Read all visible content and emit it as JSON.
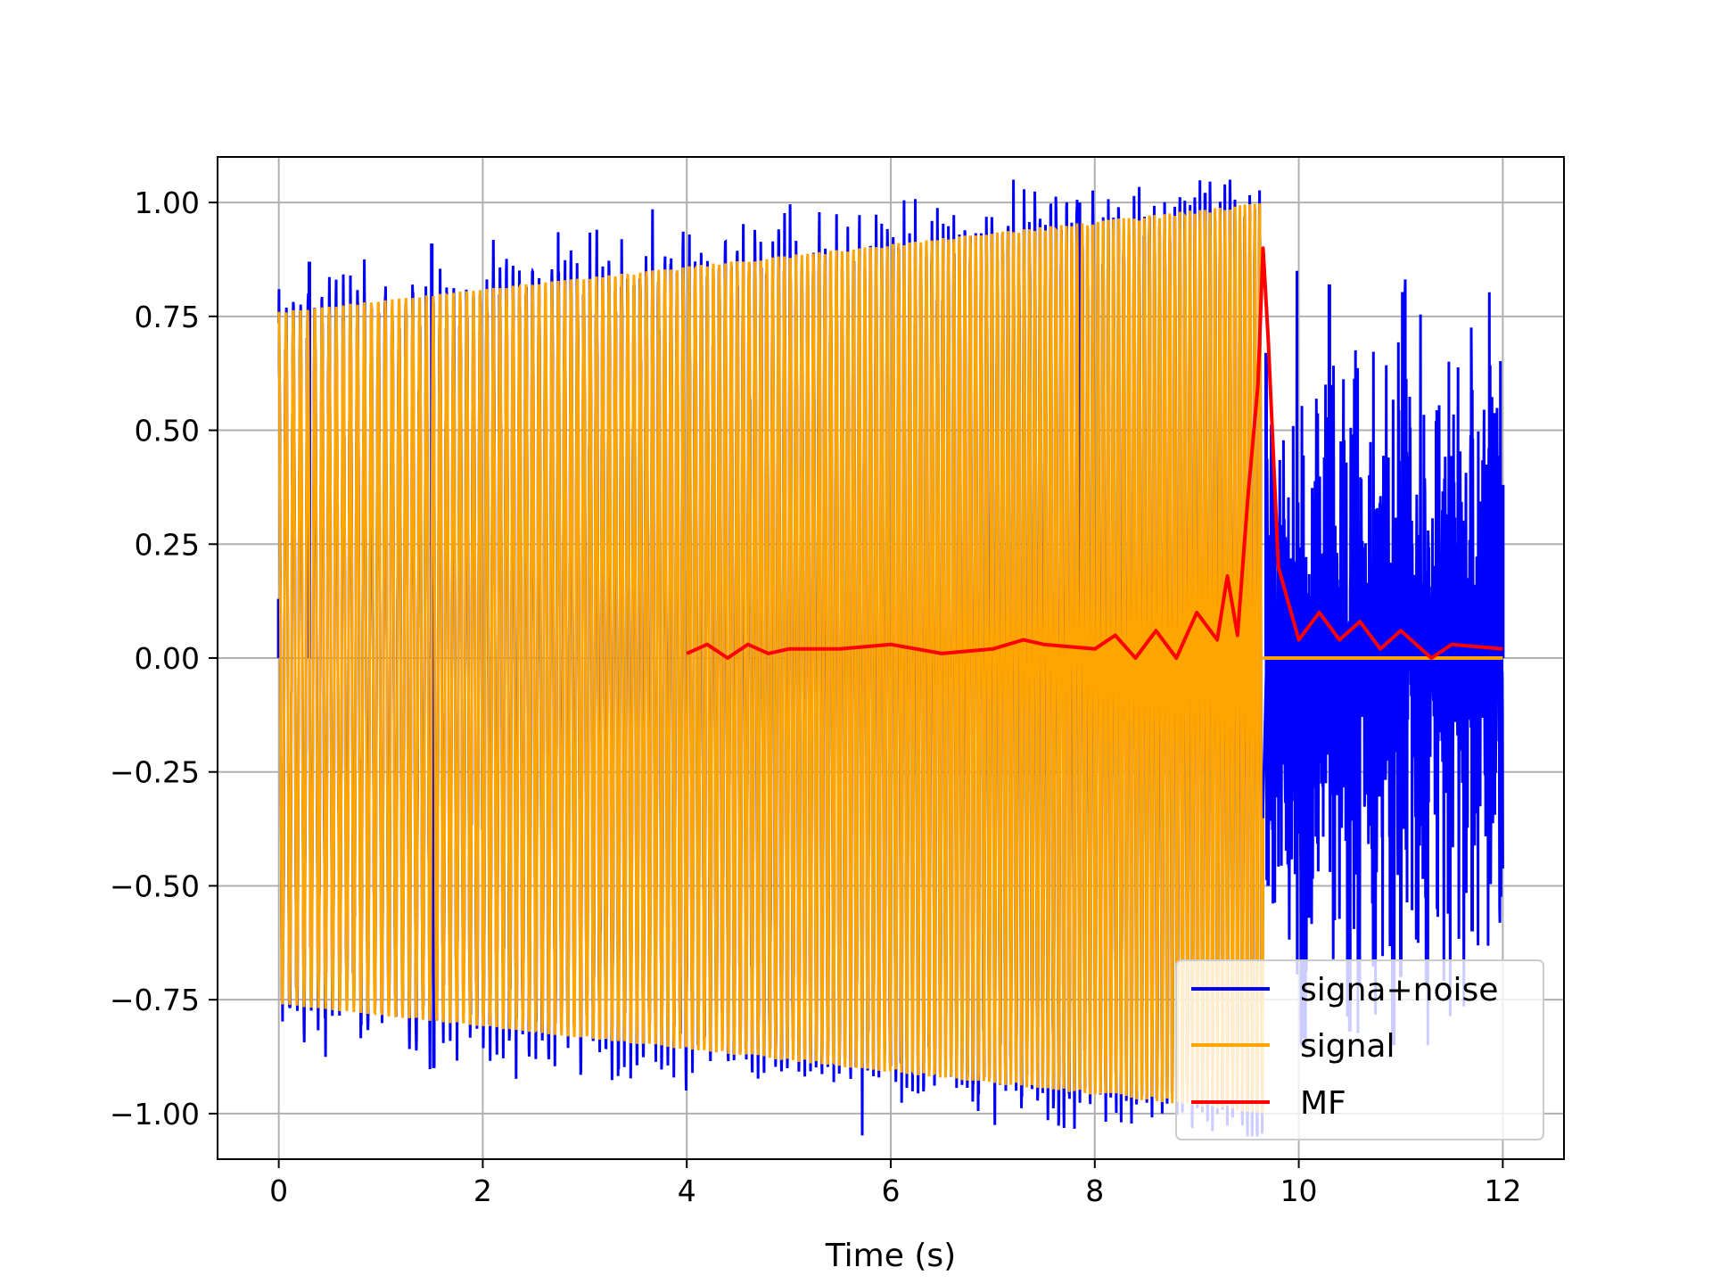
{
  "chart_data": {
    "type": "line",
    "title": "",
    "xlabel": "Time (s)",
    "ylabel": "",
    "xlim": [
      -0.6,
      12.6
    ],
    "ylim": [
      -1.1,
      1.1
    ],
    "grid": true,
    "legend_position": "bottom-right",
    "x_ticks": [
      0,
      2,
      4,
      6,
      8,
      10,
      12
    ],
    "x_tick_labels": [
      "0",
      "2",
      "4",
      "6",
      "8",
      "10",
      "12"
    ],
    "y_ticks": [
      1.0,
      0.75,
      0.5,
      0.25,
      0.0,
      -0.25,
      -0.5,
      -0.75,
      -1.0
    ],
    "y_tick_labels": [
      "1.00",
      "0.75",
      "0.50",
      "0.25",
      "0.00",
      "−0.25",
      "−0.50",
      "−0.75",
      "−1.00"
    ],
    "series": [
      {
        "name": "signa+noise",
        "color": "#0000ff",
        "description_points": {
          "x": [
            0.0,
            0.3,
            1.5,
            1.52,
            7.85,
            9.68,
            9.7,
            10.3,
            10.5,
            11.0,
            11.35,
            11.7,
            12.0
          ],
          "y": [
            0.13,
            0.87,
            0.91,
            -0.9,
            1.0,
            0.67,
            -0.5,
            0.82,
            -0.82,
            -0.7,
            0.52,
            -0.6,
            0.38
          ]
        },
        "segment_after_signal": {
          "x": [
            9.68,
            12.0
          ],
          "y_min": -0.85,
          "y_max": 0.85
        }
      },
      {
        "name": "signal",
        "color": "#ffa500",
        "envelope": {
          "x": [
            0.0,
            9.65
          ],
          "amplitude": [
            0.76,
            1.0
          ]
        },
        "after": {
          "x": [
            9.65,
            12.0
          ],
          "value": 0.0
        }
      },
      {
        "name": "MF",
        "color": "#ff0000",
        "x": [
          4.0,
          4.2,
          4.4,
          4.6,
          4.8,
          5.0,
          5.5,
          6.0,
          6.5,
          7.0,
          7.3,
          7.5,
          8.0,
          8.2,
          8.4,
          8.6,
          8.8,
          9.0,
          9.2,
          9.3,
          9.4,
          9.5,
          9.6,
          9.65,
          9.7,
          9.8,
          9.9,
          10.0,
          10.2,
          10.4,
          10.6,
          10.8,
          11.0,
          11.3,
          11.5,
          12.0
        ],
        "y": [
          0.01,
          0.03,
          0.0,
          0.03,
          0.01,
          0.02,
          0.02,
          0.03,
          0.01,
          0.02,
          0.04,
          0.03,
          0.02,
          0.05,
          0.0,
          0.06,
          0.0,
          0.1,
          0.04,
          0.18,
          0.05,
          0.35,
          0.6,
          0.9,
          0.7,
          0.2,
          0.12,
          0.04,
          0.1,
          0.04,
          0.08,
          0.02,
          0.06,
          0.0,
          0.03,
          0.02
        ]
      }
    ]
  }
}
